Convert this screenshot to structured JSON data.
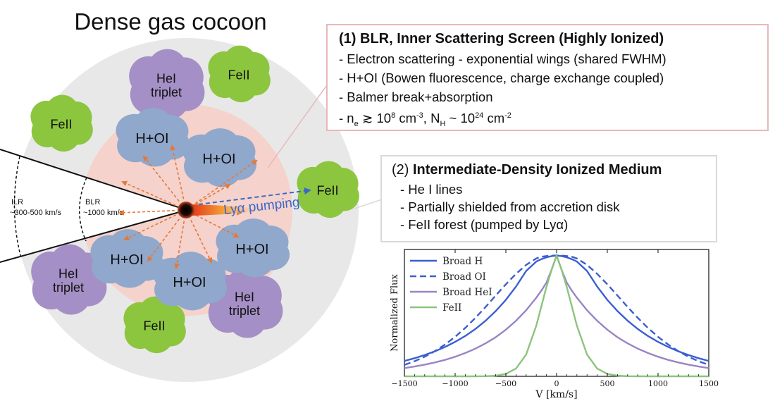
{
  "diagram": {
    "title": "Dense gas cocoon",
    "clouds": {
      "feii": "FeII",
      "hei_line1": "HeI",
      "hei_line2": "triplet",
      "hoi": "H+OI"
    },
    "regions": {
      "ilr_label": "ILR",
      "ilr_velocity": "~300-500 km/s",
      "blr_label": "BLR",
      "blr_velocity": "~1000 km/s"
    },
    "lya_pumping": "Lyα pumping"
  },
  "box1": {
    "title_prefix": "(1) ",
    "title": "BLR, Inner Scattering Screen (Highly Ionized)",
    "items": [
      "- Electron scattering - exponential wings (shared FWHM)",
      "- H+OI (Bowen fluorescence, charge exchange coupled)",
      "- Balmer break+absorption"
    ],
    "density": {
      "dash": "- n",
      "ne_sub": "e",
      "ne_rel": " ≳ 10",
      "ne_exp": "8",
      "ne_unit": " cm",
      "ne_unit_exp": "-3",
      "nh_sep": ", N",
      "nh_sub": "H",
      "nh_rel": " ~ 10",
      "nh_exp": "24",
      "nh_unit": " cm",
      "nh_unit_exp": "-2"
    }
  },
  "box2": {
    "title_prefix": "(2) ",
    "title": "Intermediate-Density Ionized Medium",
    "items": [
      "- He I lines",
      "- Partially shielded from accretion disk",
      "- FeII forest (pumped by Lyα)"
    ]
  },
  "colors": {
    "cocoon": "#e8e8e8",
    "blr_zone": "#f5d2cb",
    "cloud_feii": "#8cc63f",
    "cloud_hei": "#a48fc6",
    "cloud_hoi": "#90a8cc",
    "arrows": "#e4793a",
    "lya": "#3b67c9",
    "broad_h": "#3b5fd0",
    "broad_hei": "#9a84c4",
    "feii_line": "#8cc47e"
  },
  "chart_data": {
    "type": "line",
    "xlabel": "V [km/s]",
    "ylabel": "Normalized Flux",
    "xlim": [
      -1500,
      1500
    ],
    "ylim": [
      0,
      1.05
    ],
    "xticks": [
      -1500,
      -1000,
      -500,
      0,
      500,
      1000,
      1500
    ],
    "yticks": [],
    "grid": false,
    "legend": "top-left",
    "x": [
      -1500,
      -1400,
      -1300,
      -1200,
      -1100,
      -1000,
      -900,
      -800,
      -700,
      -600,
      -500,
      -400,
      -300,
      -200,
      -150,
      -100,
      -50,
      0,
      50,
      100,
      150,
      200,
      300,
      400,
      500,
      600,
      700,
      800,
      900,
      1000,
      1100,
      1200,
      1300,
      1400,
      1500
    ],
    "series": [
      {
        "name": "Broad H",
        "style": "solid",
        "color": "#3b5fd0",
        "values": [
          0.128,
          0.15,
          0.176,
          0.207,
          0.243,
          0.285,
          0.334,
          0.392,
          0.46,
          0.54,
          0.633,
          0.743,
          0.872,
          0.95,
          0.97,
          0.985,
          0.995,
          1.0,
          0.995,
          0.985,
          0.97,
          0.95,
          0.872,
          0.743,
          0.633,
          0.54,
          0.46,
          0.392,
          0.334,
          0.285,
          0.243,
          0.207,
          0.176,
          0.15,
          0.128
        ]
      },
      {
        "name": "Broad OI",
        "style": "dashed",
        "color": "#3b5fd0",
        "values": [
          0.095,
          0.125,
          0.162,
          0.208,
          0.263,
          0.327,
          0.401,
          0.484,
          0.574,
          0.669,
          0.762,
          0.848,
          0.922,
          0.976,
          0.99,
          0.996,
          0.999,
          1.0,
          0.999,
          0.996,
          0.99,
          0.976,
          0.922,
          0.848,
          0.762,
          0.669,
          0.574,
          0.484,
          0.401,
          0.327,
          0.263,
          0.208,
          0.162,
          0.125,
          0.095
        ]
      },
      {
        "name": "Broad HeI",
        "style": "solid",
        "color": "#9a84c4",
        "values": [
          0.068,
          0.081,
          0.097,
          0.115,
          0.136,
          0.162,
          0.193,
          0.229,
          0.273,
          0.324,
          0.386,
          0.46,
          0.547,
          0.651,
          0.71,
          0.776,
          0.88,
          1.0,
          0.88,
          0.776,
          0.71,
          0.651,
          0.547,
          0.46,
          0.386,
          0.324,
          0.273,
          0.229,
          0.193,
          0.162,
          0.136,
          0.115,
          0.097,
          0.081,
          0.068
        ]
      },
      {
        "name": "FeII",
        "style": "solid",
        "color": "#8cc47e",
        "values": [
          0.0,
          0.0,
          0.0,
          0.0,
          0.0,
          0.0,
          0.0,
          0.0,
          0.001,
          0.005,
          0.02,
          0.065,
          0.18,
          0.42,
          0.58,
          0.74,
          0.88,
          1.0,
          0.88,
          0.74,
          0.58,
          0.42,
          0.18,
          0.065,
          0.02,
          0.005,
          0.001,
          0.0,
          0.0,
          0.0,
          0.0,
          0.0,
          0.0,
          0.0,
          0.0
        ]
      }
    ]
  }
}
